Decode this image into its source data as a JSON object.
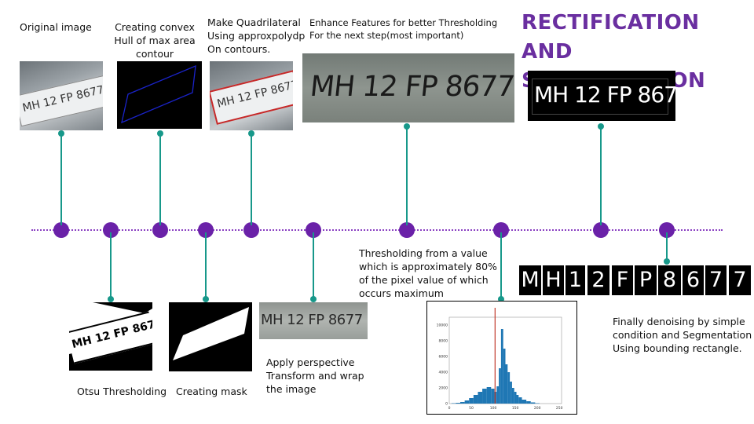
{
  "title": {
    "line1": "RECTIFICATION",
    "line2": "AND SEGMENTATION"
  },
  "plate": {
    "text": "MH 12 FP 8677",
    "characters": [
      "M",
      "H",
      "1",
      "2",
      "F",
      "P",
      "8",
      "6",
      "7",
      "7"
    ]
  },
  "steps": {
    "original_image": "Original image",
    "convex_hull": [
      "Creating convex",
      "Hull of max area",
      "contour"
    ],
    "quadrilateral": [
      "Make Quadrilateral",
      "Using approxpolydp",
      "On contours."
    ],
    "enhance": [
      "Enhance Features for better Thresholding",
      "For the next step(most important)"
    ],
    "otsu": "Otsu Thresholding",
    "mask": "Creating mask",
    "perspective": [
      "Apply perspective",
      "Transform and wrap",
      "the image"
    ],
    "threshold_value": [
      "Thresholding from a value",
      "which is approximately 80%",
      "of the pixel value of which",
      "occurs maximum"
    ],
    "segmentation": [
      "Finally denoising by simple",
      "condition and Segmentation",
      "Using bounding rectangle."
    ]
  },
  "histogram": {
    "y_ticks": [
      "0",
      "2000",
      "4000",
      "6000",
      "8000",
      "10000"
    ],
    "x_ticks": [
      "0",
      "50",
      "100",
      "150",
      "200",
      "250"
    ],
    "threshold_line_value": 104
  },
  "colors": {
    "title": "#6a2fa0",
    "node": "#6a21a8",
    "connector": "#17988a",
    "dotted_timeline": "#8a3fc2",
    "histogram_bars": "#1f77b4",
    "threshold_line": "#c0392b",
    "hull_outline": "#1a23c9",
    "quad_outline": "#c62828"
  },
  "chart_data": {
    "type": "bar",
    "title": "",
    "xlabel": "",
    "ylabel": "",
    "xlim": [
      0,
      255
    ],
    "ylim": [
      0,
      11000
    ],
    "x": [
      10,
      20,
      30,
      40,
      50,
      60,
      70,
      80,
      90,
      100,
      105,
      110,
      115,
      120,
      125,
      130,
      135,
      140,
      145,
      150,
      155,
      160,
      170,
      180,
      190,
      200
    ],
    "values": [
      50,
      100,
      200,
      400,
      700,
      1100,
      1500,
      1900,
      2100,
      1900,
      1500,
      2200,
      4500,
      9500,
      7000,
      5000,
      4000,
      2800,
      2000,
      1500,
      1100,
      800,
      500,
      300,
      150,
      50
    ],
    "annotations": [
      "vertical threshold line at x ≈ 104"
    ]
  }
}
